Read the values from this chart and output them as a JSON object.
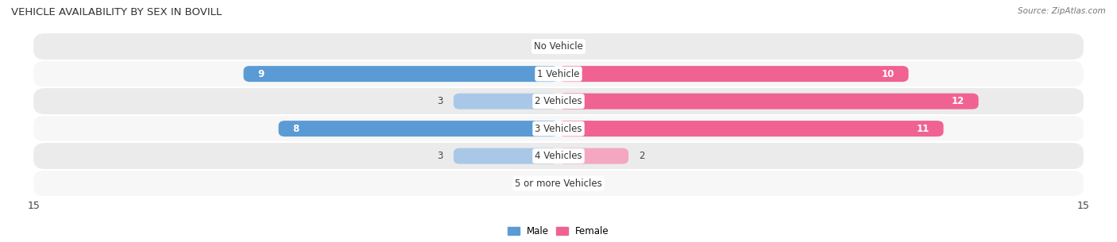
{
  "title": "VEHICLE AVAILABILITY BY SEX IN BOVILL",
  "source": "Source: ZipAtlas.com",
  "categories": [
    "No Vehicle",
    "1 Vehicle",
    "2 Vehicles",
    "3 Vehicles",
    "4 Vehicles",
    "5 or more Vehicles"
  ],
  "male_values": [
    0,
    9,
    3,
    8,
    3,
    0
  ],
  "female_values": [
    0,
    10,
    12,
    11,
    2,
    0
  ],
  "male_color_dark": "#5b9bd5",
  "male_color_light": "#a9c8e8",
  "female_color_dark": "#f06292",
  "female_color_light": "#f4a7c0",
  "row_bg_color": "#ebebeb",
  "row_bg_color2": "#f7f7f7",
  "xlim": 15,
  "bar_height": 0.58,
  "title_fontsize": 9.5,
  "source_fontsize": 7.5,
  "label_fontsize": 8.5,
  "axis_tick_fontsize": 9,
  "dark_threshold_male": 5,
  "dark_threshold_female": 5
}
